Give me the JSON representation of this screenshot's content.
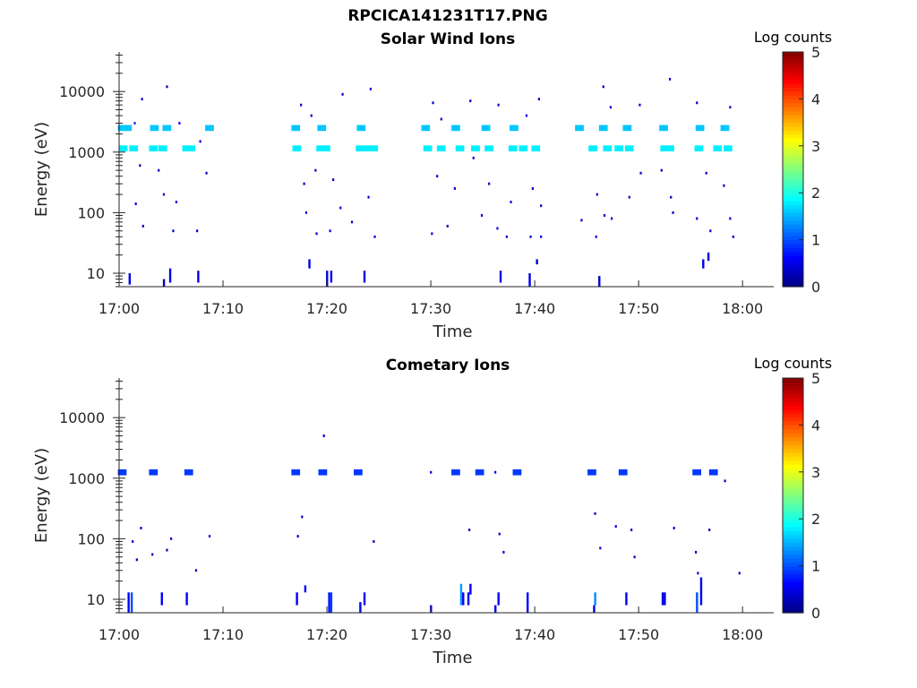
{
  "figure_title": "RPCICA141231T17.PNG",
  "chart_data": [
    {
      "type": "heatmap",
      "title": "Solar Wind Ions",
      "xlabel": "Time",
      "ylabel": "Energy (eV)",
      "x_ticks": [
        "17:00",
        "17:10",
        "17:20",
        "17:30",
        "17:40",
        "17:50",
        "18:00"
      ],
      "x_range_minutes": [
        0,
        63
      ],
      "y_ticks": [
        "10",
        "100",
        "1000",
        "10000"
      ],
      "y_scale": "log",
      "y_range": [
        6,
        45000
      ],
      "colorbar": {
        "label": "Log counts",
        "ticks": [
          "0",
          "1",
          "2",
          "3",
          "4",
          "5"
        ],
        "range": [
          0,
          5
        ]
      },
      "bands": [
        {
          "energy": 2500,
          "level": 1.6,
          "minutes": [
            0.3,
            0.8,
            3.4,
            4.6,
            8.7,
            17.0,
            19.5,
            23.3,
            29.5,
            32.4,
            35.3,
            38.0,
            44.3,
            46.6,
            48.9,
            52.4,
            55.9,
            58.3
          ]
        },
        {
          "energy": 1150,
          "level": 1.8,
          "minutes": [
            0.4,
            1.4,
            3.3,
            4.2,
            6.5,
            6.9,
            17.1,
            19.4,
            19.9,
            23.2,
            23.9,
            24.5,
            29.7,
            31.0,
            32.8,
            34.3,
            35.6,
            37.9,
            38.9,
            40.1,
            45.6,
            47.0,
            48.1,
            49.1,
            52.5,
            53.0,
            55.8,
            57.6,
            58.6
          ]
        }
      ],
      "points": [
        {
          "minute": 1.5,
          "energy": 3000,
          "level": 0.8
        },
        {
          "minute": 2.2,
          "energy": 7500,
          "level": 0.4
        },
        {
          "minute": 4.6,
          "energy": 12000,
          "level": 0.4
        },
        {
          "minute": 5.8,
          "energy": 3000,
          "level": 0.6
        },
        {
          "minute": 2.0,
          "energy": 600,
          "level": 0.4
        },
        {
          "minute": 3.8,
          "energy": 500,
          "level": 0.4
        },
        {
          "minute": 4.3,
          "energy": 200,
          "level": 0.5
        },
        {
          "minute": 5.5,
          "energy": 150,
          "level": 0.5
        },
        {
          "minute": 7.8,
          "energy": 1500,
          "level": 0.5
        },
        {
          "minute": 1.6,
          "energy": 140,
          "level": 0.4
        },
        {
          "minute": 2.3,
          "energy": 60,
          "level": 0.4
        },
        {
          "minute": 5.2,
          "energy": 50,
          "level": 0.5
        },
        {
          "minute": 7.5,
          "energy": 50,
          "level": 0.4
        },
        {
          "minute": 8.4,
          "energy": 450,
          "level": 0.4
        },
        {
          "minute": 17.5,
          "energy": 6000,
          "level": 0.4
        },
        {
          "minute": 18.5,
          "energy": 4000,
          "level": 0.4
        },
        {
          "minute": 21.5,
          "energy": 9000,
          "level": 0.4
        },
        {
          "minute": 24.2,
          "energy": 11000,
          "level": 0.4
        },
        {
          "minute": 17.8,
          "energy": 300,
          "level": 0.4
        },
        {
          "minute": 18.9,
          "energy": 500,
          "level": 0.4
        },
        {
          "minute": 20.6,
          "energy": 350,
          "level": 0.4
        },
        {
          "minute": 21.3,
          "energy": 120,
          "level": 0.5
        },
        {
          "minute": 18.0,
          "energy": 100,
          "level": 0.5
        },
        {
          "minute": 20.3,
          "energy": 50,
          "level": 0.5
        },
        {
          "minute": 22.4,
          "energy": 70,
          "level": 0.5
        },
        {
          "minute": 24.0,
          "energy": 180,
          "level": 0.5
        },
        {
          "minute": 24.6,
          "energy": 40,
          "level": 0.5
        },
        {
          "minute": 19.0,
          "energy": 45,
          "level": 0.4
        },
        {
          "minute": 30.2,
          "energy": 6500,
          "level": 0.4
        },
        {
          "minute": 31.0,
          "energy": 3500,
          "level": 0.4
        },
        {
          "minute": 33.8,
          "energy": 7000,
          "level": 0.4
        },
        {
          "minute": 36.5,
          "energy": 6000,
          "level": 0.4
        },
        {
          "minute": 39.2,
          "energy": 4000,
          "level": 0.5
        },
        {
          "minute": 40.4,
          "energy": 7500,
          "level": 0.4
        },
        {
          "minute": 30.6,
          "energy": 400,
          "level": 0.4
        },
        {
          "minute": 32.3,
          "energy": 250,
          "level": 0.4
        },
        {
          "minute": 34.1,
          "energy": 800,
          "level": 0.5
        },
        {
          "minute": 35.6,
          "energy": 300,
          "level": 0.4
        },
        {
          "minute": 37.7,
          "energy": 150,
          "level": 0.5
        },
        {
          "minute": 39.8,
          "energy": 250,
          "level": 0.4
        },
        {
          "minute": 40.6,
          "energy": 130,
          "level": 0.4
        },
        {
          "minute": 30.1,
          "energy": 45,
          "level": 0.5
        },
        {
          "minute": 31.6,
          "energy": 60,
          "level": 0.4
        },
        {
          "minute": 36.4,
          "energy": 55,
          "level": 0.4
        },
        {
          "minute": 39.6,
          "energy": 40,
          "level": 0.4
        },
        {
          "minute": 40.6,
          "energy": 40,
          "level": 0.5
        },
        {
          "minute": 34.9,
          "energy": 90,
          "level": 0.4
        },
        {
          "minute": 37.3,
          "energy": 40,
          "level": 0.4
        },
        {
          "minute": 46.6,
          "energy": 12000,
          "level": 0.4
        },
        {
          "minute": 47.3,
          "energy": 5500,
          "level": 0.4
        },
        {
          "minute": 50.1,
          "energy": 6000,
          "level": 0.4
        },
        {
          "minute": 53.0,
          "energy": 16000,
          "level": 0.4
        },
        {
          "minute": 55.6,
          "energy": 6500,
          "level": 0.4
        },
        {
          "minute": 58.8,
          "energy": 5500,
          "level": 0.4
        },
        {
          "minute": 46.0,
          "energy": 200,
          "level": 0.5
        },
        {
          "minute": 46.7,
          "energy": 90,
          "level": 0.4
        },
        {
          "minute": 49.1,
          "energy": 180,
          "level": 0.4
        },
        {
          "minute": 50.2,
          "energy": 450,
          "level": 0.4
        },
        {
          "minute": 52.2,
          "energy": 500,
          "level": 0.4
        },
        {
          "minute": 53.1,
          "energy": 180,
          "level": 0.4
        },
        {
          "minute": 56.5,
          "energy": 450,
          "level": 0.4
        },
        {
          "minute": 58.8,
          "energy": 80,
          "level": 0.4
        },
        {
          "minute": 58.2,
          "energy": 280,
          "level": 0.4
        },
        {
          "minute": 45.9,
          "energy": 40,
          "level": 0.5
        },
        {
          "minute": 47.4,
          "energy": 80,
          "level": 0.4
        },
        {
          "minute": 55.6,
          "energy": 80,
          "level": 0.4
        },
        {
          "minute": 56.9,
          "energy": 50,
          "level": 0.4
        },
        {
          "minute": 44.5,
          "energy": 75,
          "level": 0.4
        },
        {
          "minute": 53.3,
          "energy": 100,
          "level": 0.4
        },
        {
          "minute": 59.1,
          "energy": 40,
          "level": 0.4
        }
      ],
      "streaks": [
        {
          "minute": 1.0,
          "energy": [
            6.5,
            10
          ],
          "level": 0.5
        },
        {
          "minute": 4.3,
          "energy": [
            6,
            8
          ],
          "level": 0.3
        },
        {
          "minute": 4.9,
          "energy": [
            7,
            12
          ],
          "level": 0.5
        },
        {
          "minute": 7.6,
          "energy": [
            7,
            11
          ],
          "level": 0.5
        },
        {
          "minute": 18.3,
          "energy": [
            12,
            17
          ],
          "level": 0.5
        },
        {
          "minute": 20.0,
          "energy": [
            6,
            11
          ],
          "level": 0.5
        },
        {
          "minute": 20.4,
          "energy": [
            7,
            11
          ],
          "level": 0.5
        },
        {
          "minute": 23.6,
          "energy": [
            7,
            11
          ],
          "level": 0.5
        },
        {
          "minute": 36.7,
          "energy": [
            7,
            11
          ],
          "level": 0.5
        },
        {
          "minute": 39.5,
          "energy": [
            6,
            10
          ],
          "level": 0.5
        },
        {
          "minute": 40.2,
          "energy": [
            14,
            17
          ],
          "level": 0.4
        },
        {
          "minute": 46.2,
          "energy": [
            6,
            9
          ],
          "level": 0.4
        },
        {
          "minute": 56.2,
          "energy": [
            12,
            17
          ],
          "level": 0.5
        },
        {
          "minute": 56.7,
          "energy": [
            16,
            22
          ],
          "level": 0.4
        }
      ]
    },
    {
      "type": "heatmap",
      "title": "Cometary Ions",
      "xlabel": "Time",
      "ylabel": "Energy (eV)",
      "x_ticks": [
        "17:00",
        "17:10",
        "17:20",
        "17:30",
        "17:40",
        "17:50",
        "18:00"
      ],
      "x_range_minutes": [
        0,
        63
      ],
      "y_ticks": [
        "10",
        "100",
        "1000",
        "10000"
      ],
      "y_scale": "log",
      "y_range": [
        6,
        45000
      ],
      "colorbar": {
        "label": "Log counts",
        "ticks": [
          "0",
          "1",
          "2",
          "3",
          "4",
          "5"
        ],
        "range": [
          0,
          5
        ]
      },
      "bands": [
        {
          "energy": 1250,
          "level": 0.9,
          "minutes": [
            0.3,
            3.3,
            6.7,
            17.0,
            19.6,
            23.0,
            32.4,
            34.7,
            38.3,
            45.5,
            48.5,
            55.6,
            57.2
          ]
        }
      ],
      "points": [
        {
          "minute": 19.7,
          "energy": 5000,
          "level": 0.4
        },
        {
          "minute": 58.3,
          "energy": 900,
          "level": 0.4
        },
        {
          "minute": 30.0,
          "energy": 1250,
          "level": 0.5
        },
        {
          "minute": 36.2,
          "energy": 1250,
          "level": 0.5
        },
        {
          "minute": 1.3,
          "energy": 90,
          "level": 0.4
        },
        {
          "minute": 2.1,
          "energy": 150,
          "level": 0.4
        },
        {
          "minute": 4.6,
          "energy": 65,
          "level": 0.4
        },
        {
          "minute": 5.0,
          "energy": 100,
          "level": 0.4
        },
        {
          "minute": 1.7,
          "energy": 45,
          "level": 0.4
        },
        {
          "minute": 3.2,
          "energy": 55,
          "level": 0.4
        },
        {
          "minute": 7.4,
          "energy": 30,
          "level": 0.4
        },
        {
          "minute": 8.7,
          "energy": 110,
          "level": 0.4
        },
        {
          "minute": 17.2,
          "energy": 110,
          "level": 0.4
        },
        {
          "minute": 17.6,
          "energy": 230,
          "level": 0.5
        },
        {
          "minute": 24.5,
          "energy": 90,
          "level": 0.4
        },
        {
          "minute": 33.7,
          "energy": 140,
          "level": 0.4
        },
        {
          "minute": 36.6,
          "energy": 120,
          "level": 0.4
        },
        {
          "minute": 37.0,
          "energy": 60,
          "level": 0.4
        },
        {
          "minute": 45.8,
          "energy": 260,
          "level": 0.4
        },
        {
          "minute": 46.3,
          "energy": 70,
          "level": 0.4
        },
        {
          "minute": 47.8,
          "energy": 160,
          "level": 0.4
        },
        {
          "minute": 49.3,
          "energy": 140,
          "level": 0.4
        },
        {
          "minute": 53.4,
          "energy": 150,
          "level": 0.4
        },
        {
          "minute": 55.5,
          "energy": 60,
          "level": 0.4
        },
        {
          "minute": 56.8,
          "energy": 140,
          "level": 0.4
        },
        {
          "minute": 49.6,
          "energy": 50,
          "level": 0.4
        },
        {
          "minute": 55.7,
          "energy": 27,
          "level": 0.5
        },
        {
          "minute": 59.7,
          "energy": 27,
          "level": 0.4
        }
      ],
      "streaks": [
        {
          "minute": 0.9,
          "energy": [
            6,
            13
          ],
          "level": 0.6
        },
        {
          "minute": 1.2,
          "energy": [
            6,
            13
          ],
          "level": 1.0
        },
        {
          "minute": 4.1,
          "energy": [
            8,
            13
          ],
          "level": 0.6
        },
        {
          "minute": 6.5,
          "energy": [
            8,
            13
          ],
          "level": 0.6
        },
        {
          "minute": 17.1,
          "energy": [
            8,
            13
          ],
          "level": 0.6
        },
        {
          "minute": 17.9,
          "energy": [
            13,
            17
          ],
          "level": 0.6
        },
        {
          "minute": 20.2,
          "energy": [
            6,
            13
          ],
          "level": 0.7
        },
        {
          "minute": 20.4,
          "energy": [
            6,
            13
          ],
          "level": 0.9
        },
        {
          "minute": 23.2,
          "energy": [
            6,
            9
          ],
          "level": 0.6
        },
        {
          "minute": 23.6,
          "energy": [
            8,
            13
          ],
          "level": 0.6
        },
        {
          "minute": 30.0,
          "energy": [
            6,
            8
          ],
          "level": 0.6
        },
        {
          "minute": 32.9,
          "energy": [
            8,
            18
          ],
          "level": 1.4
        },
        {
          "minute": 33.1,
          "energy": [
            8,
            13
          ],
          "level": 0.6
        },
        {
          "minute": 33.6,
          "energy": [
            8,
            13
          ],
          "level": 0.6
        },
        {
          "minute": 33.8,
          "energy": [
            12,
            18
          ],
          "level": 0.6
        },
        {
          "minute": 36.2,
          "energy": [
            6,
            8
          ],
          "level": 0.6
        },
        {
          "minute": 36.5,
          "energy": [
            8,
            13
          ],
          "level": 0.6
        },
        {
          "minute": 39.3,
          "energy": [
            6,
            13
          ],
          "level": 0.6
        },
        {
          "minute": 45.7,
          "energy": [
            6,
            8
          ],
          "level": 0.5
        },
        {
          "minute": 45.8,
          "energy": [
            8,
            13
          ],
          "level": 1.3
        },
        {
          "minute": 48.8,
          "energy": [
            8,
            13
          ],
          "level": 0.6
        },
        {
          "minute": 52.3,
          "energy": [
            8,
            13
          ],
          "level": 0.5
        },
        {
          "minute": 52.5,
          "energy": [
            8,
            13
          ],
          "level": 0.5
        },
        {
          "minute": 55.6,
          "energy": [
            6,
            13
          ],
          "level": 1.0
        },
        {
          "minute": 56.0,
          "energy": [
            8,
            23
          ],
          "level": 0.6
        }
      ]
    }
  ]
}
